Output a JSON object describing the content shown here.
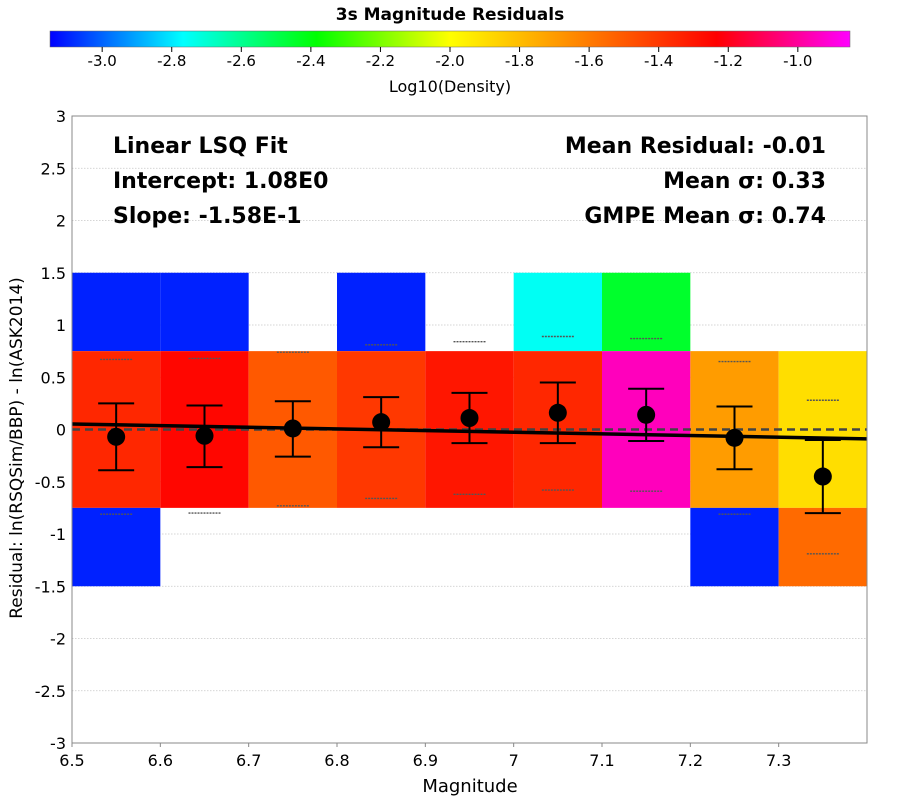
{
  "chart_data": {
    "type": "heatmap",
    "title": "3s Magnitude Residuals",
    "xlabel": "Magnitude",
    "ylabel": "Residual: ln(RSQSim/BBP) - ln(ASK2014)",
    "xlim": [
      6.5,
      7.4
    ],
    "ylim": [
      -3,
      3
    ],
    "xticks": [
      "6.5",
      "6.6",
      "6.7",
      "6.8",
      "6.9",
      "7",
      "7.1",
      "7.2",
      "7.3"
    ],
    "yticks": [
      "-3",
      "-2.5",
      "-2",
      "-1.5",
      "-1",
      "-0.5",
      "0",
      "0.5",
      "1",
      "1.5",
      "2",
      "2.5",
      "3"
    ],
    "grid": true,
    "colorbar": {
      "label": "Log10(Density)",
      "range": [
        -3.15,
        -0.85
      ],
      "ticks": [
        "-3.0",
        "-2.8",
        "-2.6",
        "-2.4",
        "-2.2",
        "-2.0",
        "-1.8",
        "-1.6",
        "-1.4",
        "-1.2",
        "-1.0"
      ],
      "stops": [
        "#0000ff",
        "#00ffff",
        "#00ff00",
        "#ffff00",
        "#ff8000",
        "#ff0000",
        "#ff00ff"
      ]
    },
    "cells": [
      {
        "x": [
          6.5,
          6.6
        ],
        "y": [
          0.75,
          1.5
        ],
        "log_density": -3.1
      },
      {
        "x": [
          6.5,
          6.6
        ],
        "y": [
          -0.75,
          0.75
        ],
        "log_density": -1.35
      },
      {
        "x": [
          6.5,
          6.6
        ],
        "y": [
          -1.5,
          -0.75
        ],
        "log_density": -3.1
      },
      {
        "x": [
          6.6,
          6.7
        ],
        "y": [
          0.75,
          1.5
        ],
        "log_density": -3.1
      },
      {
        "x": [
          6.6,
          6.7
        ],
        "y": [
          -0.75,
          0.75
        ],
        "log_density": -1.25
      },
      {
        "x": [
          6.7,
          6.8
        ],
        "y": [
          -0.75,
          0.75
        ],
        "log_density": -1.5
      },
      {
        "x": [
          6.8,
          6.9
        ],
        "y": [
          0.75,
          1.5
        ],
        "log_density": -3.1
      },
      {
        "x": [
          6.8,
          6.9
        ],
        "y": [
          -0.75,
          0.75
        ],
        "log_density": -1.4
      },
      {
        "x": [
          6.9,
          7.0
        ],
        "y": [
          -0.75,
          0.75
        ],
        "log_density": -1.3
      },
      {
        "x": [
          7.0,
          7.1
        ],
        "y": [
          0.75,
          1.5
        ],
        "log_density": -2.75
      },
      {
        "x": [
          7.0,
          7.1
        ],
        "y": [
          -0.75,
          0.75
        ],
        "log_density": -1.35
      },
      {
        "x": [
          7.1,
          7.2
        ],
        "y": [
          0.75,
          1.5
        ],
        "log_density": -2.45
      },
      {
        "x": [
          7.1,
          7.2
        ],
        "y": [
          -0.75,
          0.75
        ],
        "log_density": -0.95
      },
      {
        "x": [
          7.2,
          7.3
        ],
        "y": [
          -0.75,
          0.75
        ],
        "log_density": -1.7
      },
      {
        "x": [
          7.2,
          7.3
        ],
        "y": [
          -1.5,
          -0.75
        ],
        "log_density": -3.1
      },
      {
        "x": [
          7.3,
          7.4
        ],
        "y": [
          -0.75,
          0.75
        ],
        "log_density": -1.9
      },
      {
        "x": [
          7.3,
          7.4
        ],
        "y": [
          -1.5,
          -0.75
        ],
        "log_density": -1.55
      }
    ],
    "means": [
      {
        "x": 6.55,
        "mean": -0.07,
        "lower": -0.39,
        "upper": 0.25
      },
      {
        "x": 6.65,
        "mean": -0.06,
        "lower": -0.36,
        "upper": 0.23
      },
      {
        "x": 6.75,
        "mean": 0.01,
        "lower": -0.26,
        "upper": 0.27
      },
      {
        "x": 6.85,
        "mean": 0.07,
        "lower": -0.17,
        "upper": 0.31
      },
      {
        "x": 6.95,
        "mean": 0.11,
        "lower": -0.13,
        "upper": 0.35
      },
      {
        "x": 7.05,
        "mean": 0.16,
        "lower": -0.13,
        "upper": 0.45
      },
      {
        "x": 7.15,
        "mean": 0.14,
        "lower": -0.11,
        "upper": 0.39
      },
      {
        "x": 7.25,
        "mean": -0.08,
        "lower": -0.38,
        "upper": 0.22
      },
      {
        "x": 7.35,
        "mean": -0.45,
        "lower": -0.8,
        "upper": -0.1
      }
    ],
    "gmpe_bounds": [
      {
        "x": 6.55,
        "upper": 0.67,
        "lower": -0.81
      },
      {
        "x": 6.65,
        "upper": 0.68,
        "lower": -0.8
      },
      {
        "x": 6.75,
        "upper": 0.74,
        "lower": -0.73
      },
      {
        "x": 6.85,
        "upper": 0.81,
        "lower": -0.66
      },
      {
        "x": 6.95,
        "upper": 0.84,
        "lower": -0.62
      },
      {
        "x": 7.05,
        "upper": 0.89,
        "lower": -0.58
      },
      {
        "x": 7.15,
        "upper": 0.87,
        "lower": -0.59
      },
      {
        "x": 7.25,
        "upper": 0.65,
        "lower": -0.81
      },
      {
        "x": 7.35,
        "upper": 0.28,
        "lower": -1.19
      }
    ],
    "fit": {
      "intercept": 1.08,
      "slope": -0.158
    },
    "annotations_left": [
      "Linear LSQ Fit",
      "Intercept: 1.08E0",
      "Slope: -1.58E-1"
    ],
    "annotations_right": [
      "Mean Residual: -0.01",
      "Mean σ: 0.33",
      "GMPE Mean σ: 0.74"
    ]
  }
}
